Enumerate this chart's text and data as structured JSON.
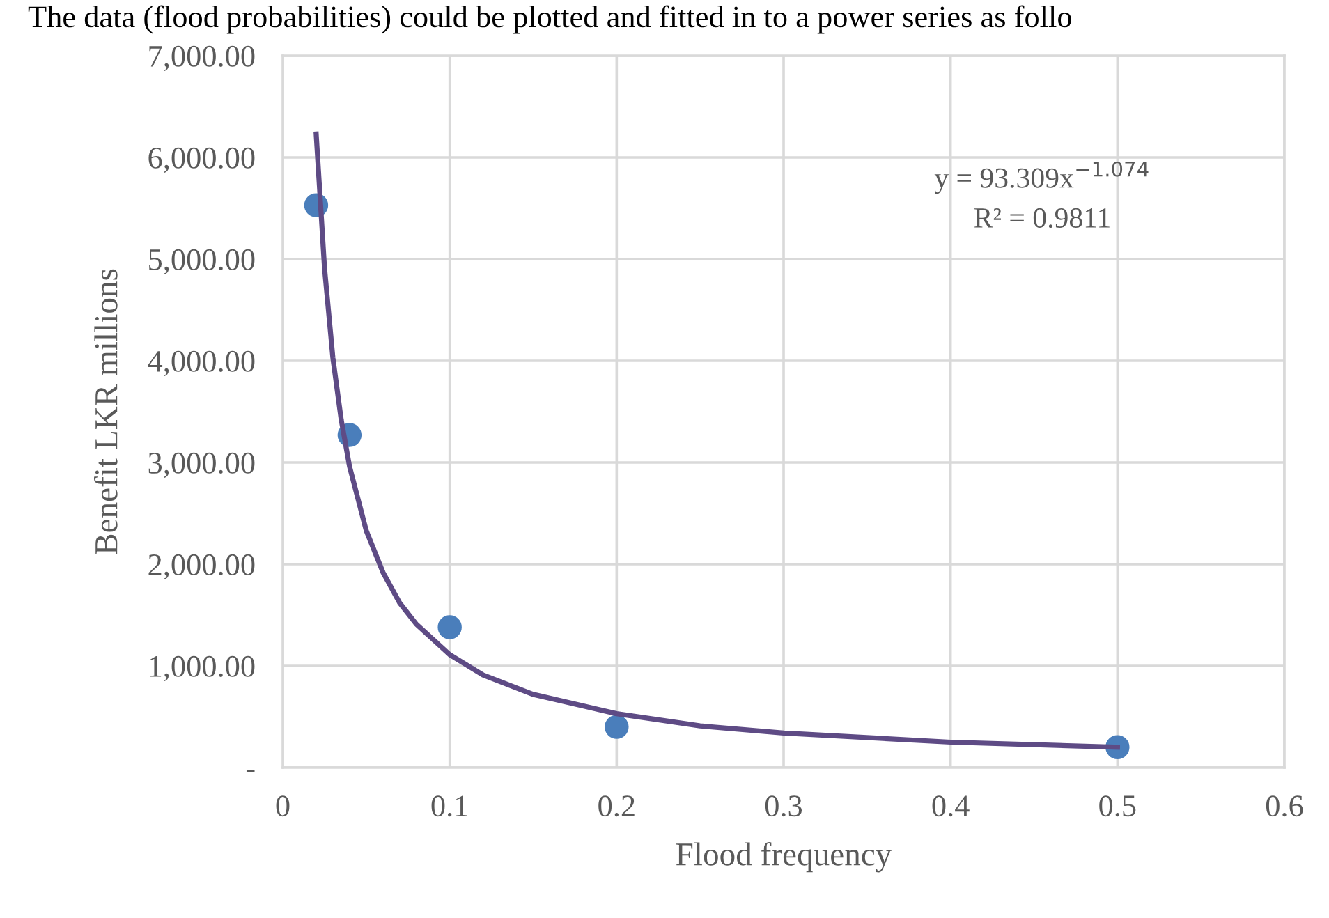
{
  "chart_data": {
    "type": "scatter",
    "xlabel": "Flood frequency",
    "ylabel": "Benefit LKR millions",
    "annotations": [
      "The data (flood probabilities) could be plotted and fitted in to a power series as follo",
      "y = 93.309x$^{−1.074}$",
      "R² = 0.9811"
    ],
    "series": [
      {
        "type": "scatter",
        "color": "#4a7ebb",
        "x": [
          0.02,
          0.04,
          0.1,
          0.2,
          0.5
        ],
        "values": [
          5530,
          3270,
          1380,
          400,
          200
        ],
        "marker": "circle"
      },
      {
        "type": "line",
        "color": "#5e4b85",
        "x": [
          0.02,
          0.025,
          0.03,
          0.035,
          0.04,
          0.05,
          0.06,
          0.07,
          0.08,
          0.1,
          0.12,
          0.15,
          0.2,
          0.25,
          0.3,
          0.4,
          0.5
        ],
        "values": [
          6230,
          4910,
          4030,
          3420,
          2960,
          2330,
          1920,
          1620,
          1410,
          1110,
          910,
          720,
          530,
          410,
          340,
          250,
          200
        ],
        "line_style": "solid"
      }
    ],
    "xlim": [
      0,
      0.6
    ],
    "xticks": [
      0,
      0.1,
      0.2,
      0.3,
      0.4,
      0.5,
      0.6
    ],
    "ylim": [
      0,
      7000
    ],
    "yticks": [
      {
        "value": 0,
        "label": "-"
      },
      {
        "value": 1000,
        "label": "1,000.00"
      },
      {
        "value": 2000,
        "label": "2,000.00"
      },
      {
        "value": 3000,
        "label": "3,000.00"
      },
      {
        "value": 4000,
        "label": "4,000.00"
      },
      {
        "value": 5000,
        "label": "5,000.00"
      },
      {
        "value": 6000,
        "label": "6,000.00"
      },
      {
        "value": 7000,
        "label": "7,000.00"
      }
    ],
    "grid": true,
    "legend": false
  }
}
